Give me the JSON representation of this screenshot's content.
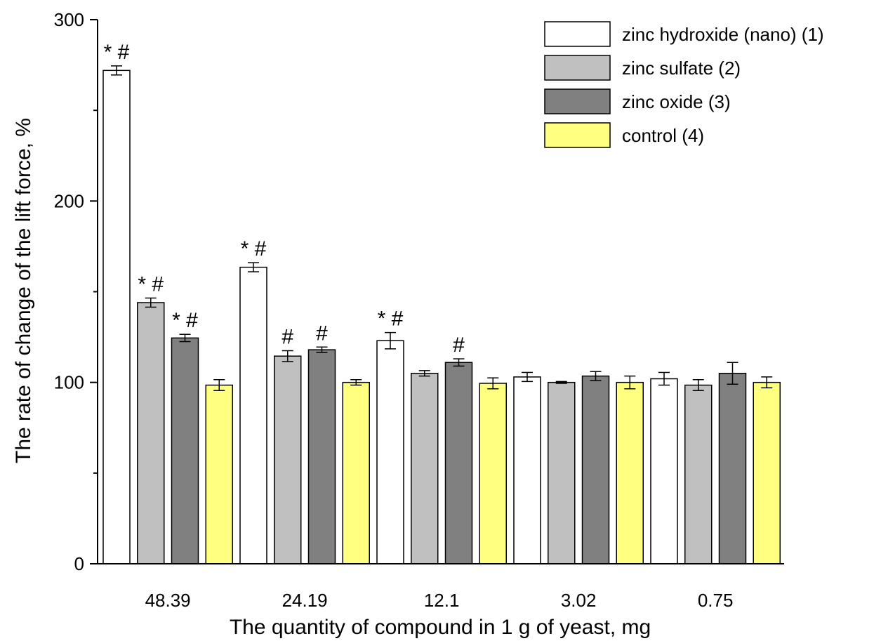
{
  "chart_data": {
    "type": "bar",
    "title": "",
    "xlabel": "The quantity of compound in 1 g of yeast, mg",
    "ylabel": "The rate of change of the lift force, %",
    "ylim": [
      0,
      300
    ],
    "yticks": [
      0,
      100,
      200,
      300
    ],
    "grid": false,
    "legend_position": "top-right",
    "categories": [
      "48.39",
      "24.19",
      "12.1",
      "3.02",
      "0.75"
    ],
    "series": [
      {
        "name": "zinc hydroxide (nano) (1)",
        "color": "#ffffff",
        "values": [
          272,
          163.5,
          123,
          103,
          102
        ],
        "errors": [
          2.5,
          2.5,
          4.5,
          2.5,
          3.5
        ],
        "annotations": [
          "* #",
          "* #",
          "* #",
          "",
          ""
        ]
      },
      {
        "name": "zinc sulfate (2)",
        "color": "#c0c0c0",
        "values": [
          144,
          114.5,
          105,
          100,
          98.5
        ],
        "errors": [
          2.5,
          3,
          1.5,
          0.5,
          3
        ],
        "annotations": [
          "* #",
          "#",
          "",
          "",
          ""
        ]
      },
      {
        "name": "zinc oxide (3)",
        "color": "#808080",
        "values": [
          124.5,
          118,
          111,
          103.5,
          105
        ],
        "errors": [
          2,
          1.5,
          2,
          2.5,
          6
        ],
        "annotations": [
          "* #",
          "#",
          "#",
          "",
          ""
        ]
      },
      {
        "name": "control (4)",
        "color": "#ffff80",
        "values": [
          98.5,
          100,
          99.5,
          100,
          100
        ],
        "errors": [
          3,
          1.5,
          3,
          3.5,
          3
        ],
        "annotations": [
          "",
          "",
          "",
          "",
          ""
        ]
      }
    ]
  }
}
